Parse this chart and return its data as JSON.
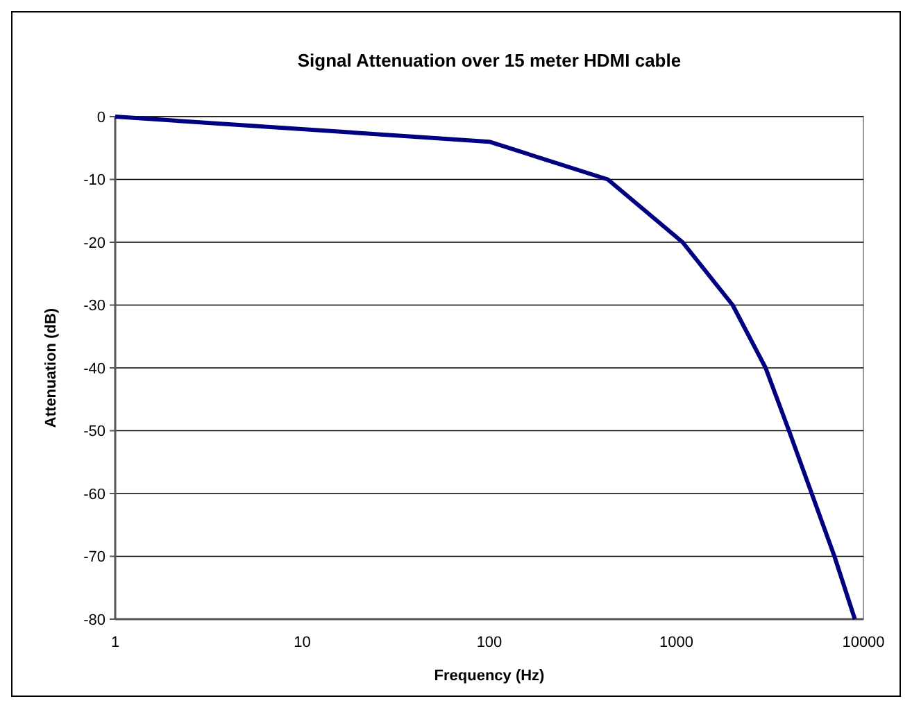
{
  "chart_data": {
    "type": "line",
    "title": "Signal Attenuation over 15 meter HDMI cable",
    "xlabel": "Frequency (Hz)",
    "ylabel": "Attenuation (dB)",
    "x": [
      1,
      100,
      430,
      1080,
      2000,
      3000,
      4000,
      7000,
      9000
    ],
    "series": [
      {
        "color": "#000080",
        "values": [
          0,
          -4,
          -10,
          -20,
          -30,
          -40,
          -50,
          -70,
          -80
        ]
      }
    ],
    "log": "x",
    "xlim": [
      1,
      10000
    ],
    "xticks": [
      1,
      10,
      100,
      1000,
      10000
    ],
    "ylim": [
      -80,
      0
    ],
    "yticks": [
      -80,
      -70,
      -60,
      -50,
      -40,
      -30,
      -20,
      -10,
      0
    ],
    "grid": "y",
    "marker": "none",
    "line_style": "solid"
  }
}
